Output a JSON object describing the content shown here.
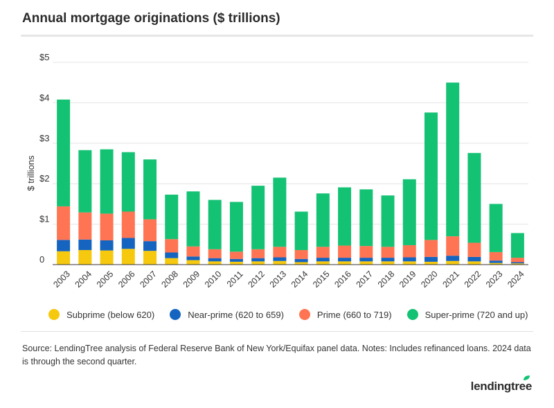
{
  "title": "Annual mortgage originations ($ trillions)",
  "source_text": "Source: LendingTree analysis of Federal Reserve Bank of New York/Equifax panel data. Notes: Includes refinanced loans. 2024 data is through the second quarter.",
  "logo_text": "lendingtree",
  "legend": [
    {
      "label": "Subprime (below 620)",
      "color": "#F6C90E"
    },
    {
      "label": "Near-prime (620 to 659)",
      "color": "#1565C0"
    },
    {
      "label": "Prime (660 to 719)",
      "color": "#FF7452"
    },
    {
      "label": "Super-prime (720 and up)",
      "color": "#14C274"
    }
  ],
  "chart_data": {
    "type": "bar",
    "stacked": true,
    "ylabel": "$ trillions",
    "ylim": [
      0,
      5
    ],
    "yticks": [
      {
        "value": 0,
        "label": "0"
      },
      {
        "value": 1,
        "label": "$1"
      },
      {
        "value": 2,
        "label": "$2"
      },
      {
        "value": 3,
        "label": "$3"
      },
      {
        "value": 4,
        "label": "$4"
      },
      {
        "value": 5,
        "label": "$5"
      }
    ],
    "grid": true,
    "legend_position": "bottom",
    "categories": [
      "2003",
      "2004",
      "2005",
      "2006",
      "2007",
      "2008",
      "2009",
      "2010",
      "2011",
      "2012",
      "2013",
      "2014",
      "2015",
      "2016",
      "2017",
      "2018",
      "2019",
      "2020",
      "2021",
      "2022",
      "2023",
      "2024"
    ],
    "series": [
      {
        "name": "Subprime (below 620)",
        "color": "#F6C90E",
        "values": [
          0.33,
          0.36,
          0.35,
          0.39,
          0.34,
          0.16,
          0.11,
          0.08,
          0.07,
          0.08,
          0.09,
          0.06,
          0.08,
          0.08,
          0.08,
          0.08,
          0.08,
          0.07,
          0.09,
          0.08,
          0.04,
          0.03
        ]
      },
      {
        "name": "Near-prime (620 to 659)",
        "color": "#1565C0",
        "values": [
          0.28,
          0.26,
          0.25,
          0.27,
          0.24,
          0.14,
          0.09,
          0.08,
          0.07,
          0.08,
          0.09,
          0.08,
          0.09,
          0.09,
          0.09,
          0.09,
          0.1,
          0.12,
          0.13,
          0.11,
          0.06,
          0.03
        ]
      },
      {
        "name": "Prime (660 to 719)",
        "color": "#FF7452",
        "values": [
          0.83,
          0.67,
          0.66,
          0.65,
          0.54,
          0.33,
          0.25,
          0.22,
          0.18,
          0.22,
          0.26,
          0.22,
          0.27,
          0.3,
          0.29,
          0.27,
          0.3,
          0.42,
          0.48,
          0.35,
          0.21,
          0.11
        ]
      },
      {
        "name": "Super-prime (720 and up)",
        "color": "#14C274",
        "values": [
          2.64,
          1.54,
          1.59,
          1.47,
          1.48,
          1.1,
          1.36,
          1.22,
          1.23,
          1.57,
          1.71,
          0.95,
          1.32,
          1.44,
          1.4,
          1.27,
          1.63,
          3.15,
          3.8,
          2.22,
          1.19,
          0.61
        ]
      }
    ]
  }
}
